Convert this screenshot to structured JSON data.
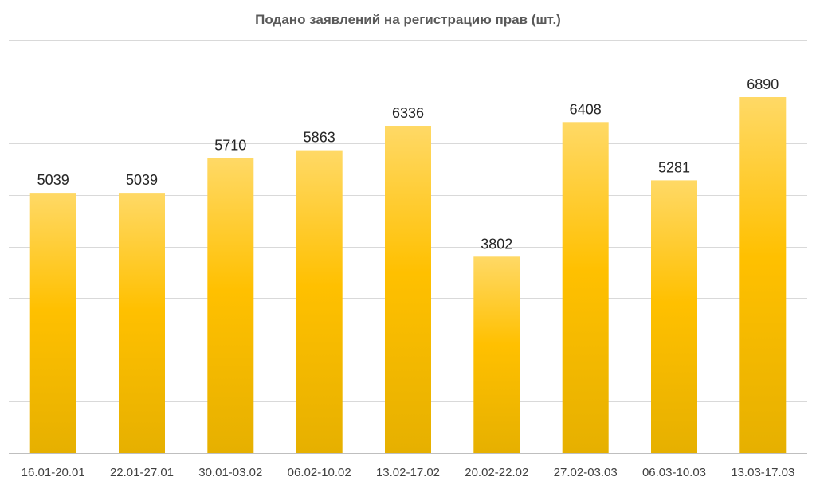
{
  "chart_data": {
    "type": "bar",
    "title": "Подано заявлений на регистрацию прав (шт.)",
    "categories": [
      "16.01-20.01",
      "22.01-27.01",
      "30.01-03.02",
      "06.02-10.02",
      "13.02-17.02",
      "20.02-22.02",
      "27.02-03.03",
      "06.03-10.03",
      "13.03-17.03"
    ],
    "values": [
      5039,
      5039,
      5710,
      5863,
      6336,
      3802,
      6408,
      5281,
      6890
    ],
    "ylim": [
      0,
      8000
    ],
    "grid": true,
    "legend": false,
    "colors": {
      "bar_top": "#ffd966",
      "bar_mid": "#ffc000",
      "bar_bottom": "#e6b000",
      "grid": "#d9d9d9"
    }
  }
}
